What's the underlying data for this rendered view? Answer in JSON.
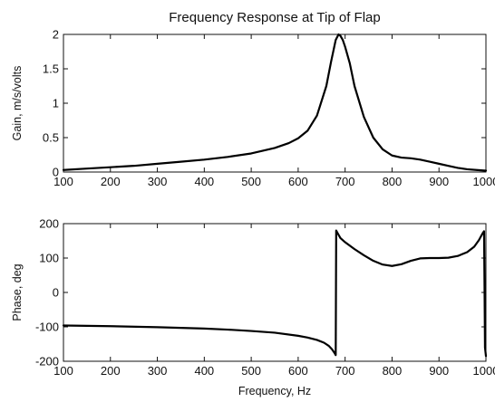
{
  "chart_data": [
    {
      "type": "line",
      "title": "Frequency Response at Tip of Flap",
      "xlabel": "",
      "ylabel": "Gain, m/s/volts",
      "xlim": [
        100,
        1000
      ],
      "ylim": [
        0,
        2
      ],
      "xticks": [
        "100",
        "200",
        "300",
        "400",
        "500",
        "600",
        "700",
        "800",
        "900",
        "1000"
      ],
      "yticks": [
        "0",
        "0.5",
        "1",
        "1.5",
        "2"
      ],
      "grid": false,
      "series": [
        {
          "x": [
            100,
            150,
            200,
            250,
            300,
            350,
            400,
            450,
            500,
            550,
            580,
            600,
            620,
            640,
            660,
            670,
            680,
            686,
            690,
            695,
            700,
            710,
            720,
            740,
            760,
            780,
            800,
            820,
            840,
            860,
            880,
            900,
            920,
            940,
            960,
            980,
            1000
          ],
          "values": [
            0.03,
            0.05,
            0.07,
            0.09,
            0.12,
            0.15,
            0.18,
            0.22,
            0.27,
            0.35,
            0.42,
            0.49,
            0.6,
            0.82,
            1.25,
            1.6,
            1.92,
            2.0,
            1.98,
            1.92,
            1.82,
            1.58,
            1.25,
            0.8,
            0.5,
            0.33,
            0.24,
            0.21,
            0.2,
            0.18,
            0.15,
            0.12,
            0.09,
            0.06,
            0.04,
            0.03,
            0.02
          ]
        }
      ]
    },
    {
      "type": "line",
      "title": "",
      "xlabel": "Frequency, Hz",
      "ylabel": "Phase, deg",
      "xlim": [
        100,
        1000
      ],
      "ylim": [
        -200,
        200
      ],
      "xticks": [
        "100",
        "200",
        "300",
        "400",
        "500",
        "600",
        "700",
        "800",
        "900",
        "1000"
      ],
      "yticks": [
        "-200",
        "-100",
        "0",
        "100",
        "200"
      ],
      "grid": false,
      "series": [
        {
          "x": [
            100,
            150,
            200,
            300,
            400,
            450,
            500,
            550,
            600,
            620,
            640,
            655,
            665,
            672,
            677,
            680,
            681,
            685,
            690,
            700,
            720,
            740,
            760,
            780,
            800,
            820,
            840,
            860,
            880,
            900,
            920,
            940,
            960,
            975,
            985,
            993,
            996,
            997,
            998,
            1000
          ],
          "values": [
            -96,
            -97,
            -98,
            -101,
            -105,
            -108,
            -112,
            -117,
            -126,
            -131,
            -138,
            -146,
            -155,
            -165,
            -175,
            -182,
            180,
            170,
            158,
            146,
            126,
            108,
            92,
            81,
            77,
            82,
            92,
            99,
            100,
            100,
            101,
            106,
            117,
            133,
            152,
            172,
            178,
            20,
            -160,
            -185
          ]
        }
      ]
    }
  ]
}
